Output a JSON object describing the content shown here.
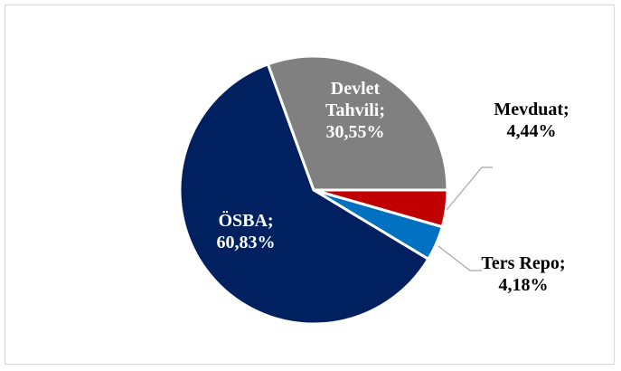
{
  "chart_data": {
    "type": "pie",
    "title": "",
    "start_angle_deg": 0,
    "direction": "clockwise",
    "border_color": "#ffffff",
    "slices": [
      {
        "label": "Mevduat",
        "value": 4.44,
        "display": "4,44%",
        "color": "#c00000",
        "label_position": "outside",
        "label_lines": [
          "Mevduat;",
          "4,44%"
        ]
      },
      {
        "label": "Ters Repo",
        "value": 4.18,
        "display": "4,18%",
        "color": "#0070c0",
        "label_position": "outside",
        "label_lines": [
          "Ters Repo;",
          "4,18%"
        ]
      },
      {
        "label": "ÖSBA",
        "value": 60.83,
        "display": "60,83%",
        "color": "#002060",
        "label_position": "inside",
        "label_lines": [
          "ÖSBA;",
          "60,83%"
        ]
      },
      {
        "label": "Devlet Tahvili",
        "value": 30.55,
        "display": "30,55%",
        "color": "#808080",
        "label_position": "inside",
        "label_lines": [
          "Devlet",
          "Tahvili;",
          "30,55%"
        ]
      }
    ]
  }
}
